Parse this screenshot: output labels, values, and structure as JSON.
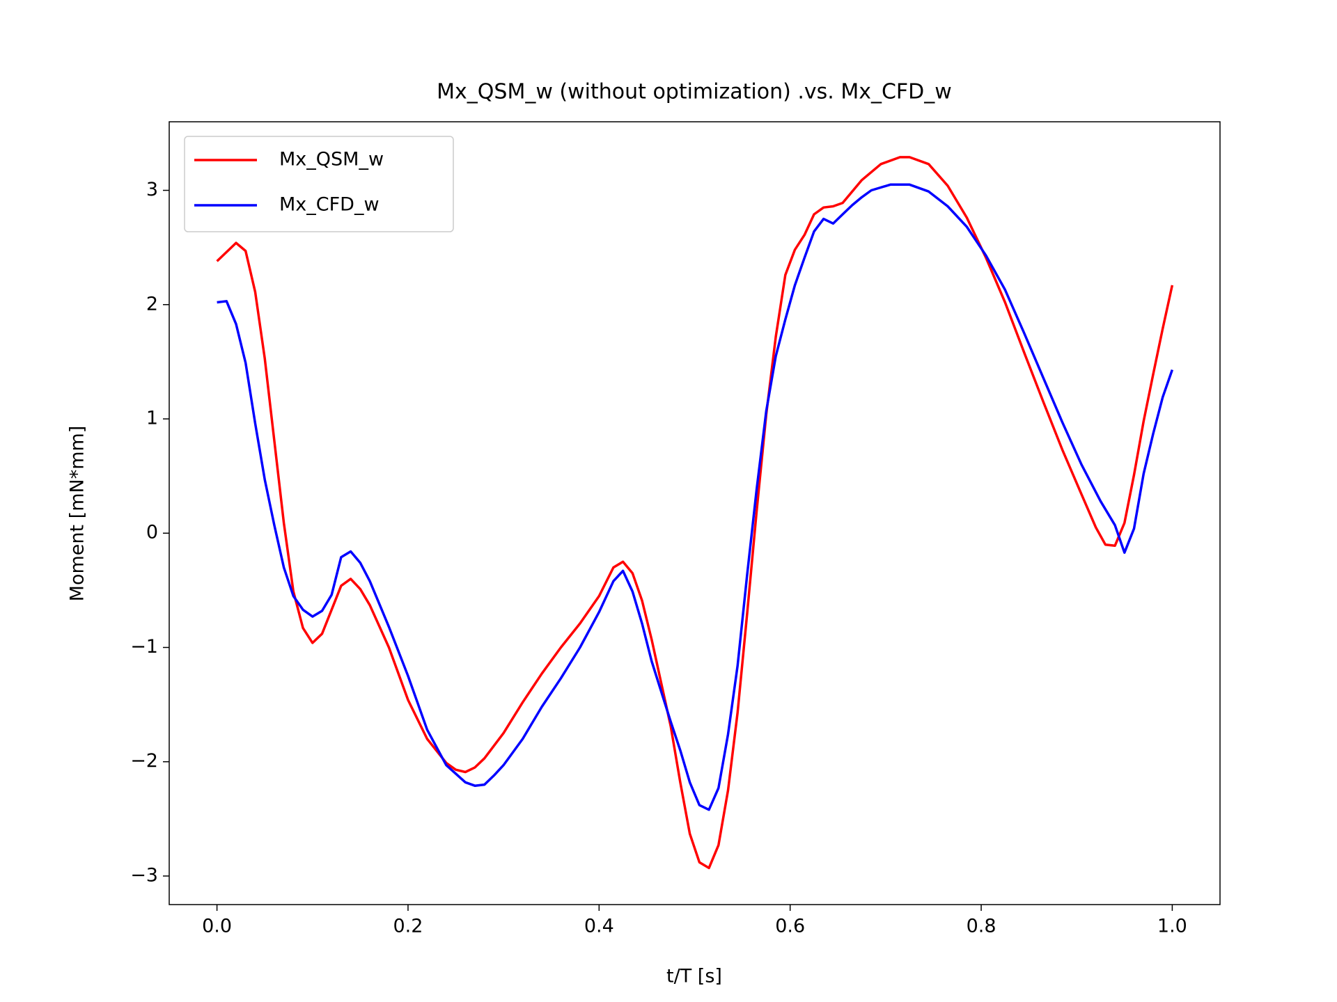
{
  "chart_data": {
    "type": "line",
    "title": "Mx_QSM_w (without optimization) .vs. Mx_CFD_w",
    "x_label": "t/T [s]",
    "y_label": "Moment [mN*mm]",
    "xlim": [
      -0.05,
      1.05
    ],
    "ylim": [
      -3.25,
      3.6
    ],
    "xticks": [
      {
        "value": 0,
        "label": "0.0"
      },
      {
        "value": 0.2,
        "label": "0.2"
      },
      {
        "value": 0.4,
        "label": "0.4"
      },
      {
        "value": 0.6,
        "label": "0.6"
      },
      {
        "value": 0.8,
        "label": "0.8"
      },
      {
        "value": 1,
        "label": "1.0"
      }
    ],
    "yticks": [
      {
        "value": -3,
        "label": "−3"
      },
      {
        "value": -2,
        "label": "−2"
      },
      {
        "value": -1,
        "label": "−1"
      },
      0,
      1,
      2,
      3
    ],
    "legend": "upper left",
    "series": [
      {
        "name": "Mx_QSM_w",
        "color": "#ff0000",
        "x": [
          0,
          0.01,
          0.02,
          0.03,
          0.04,
          0.05,
          0.06,
          0.07,
          0.08,
          0.09,
          0.1,
          0.11,
          0.12,
          0.13,
          0.14,
          0.15,
          0.16,
          0.18,
          0.2,
          0.22,
          0.24,
          0.25,
          0.26,
          0.27,
          0.28,
          0.3,
          0.32,
          0.34,
          0.36,
          0.38,
          0.4,
          0.415,
          0.425,
          0.435,
          0.445,
          0.455,
          0.475,
          0.485,
          0.495,
          0.505,
          0.515,
          0.525,
          0.535,
          0.545,
          0.555,
          0.565,
          0.575,
          0.585,
          0.595,
          0.605,
          0.615,
          0.625,
          0.635,
          0.645,
          0.655,
          0.665,
          0.675,
          0.695,
          0.715,
          0.725,
          0.745,
          0.765,
          0.785,
          0.805,
          0.825,
          0.845,
          0.865,
          0.885,
          0.905,
          0.92,
          0.93,
          0.94,
          0.95,
          0.96,
          0.97,
          0.98,
          0.99,
          1.0
        ],
        "values": [
          2.38,
          2.46,
          2.54,
          2.47,
          2.11,
          1.53,
          0.81,
          0.09,
          -0.51,
          -0.83,
          -0.96,
          -0.88,
          -0.67,
          -0.46,
          -0.4,
          -0.49,
          -0.63,
          -1.0,
          -1.46,
          -1.8,
          -2.01,
          -2.07,
          -2.09,
          -2.05,
          -1.97,
          -1.75,
          -1.48,
          -1.23,
          -1.0,
          -0.79,
          -0.55,
          -0.3,
          -0.25,
          -0.35,
          -0.59,
          -0.93,
          -1.69,
          -2.18,
          -2.63,
          -2.88,
          -2.93,
          -2.73,
          -2.25,
          -1.57,
          -0.7,
          0.2,
          1.04,
          1.72,
          2.26,
          2.48,
          2.61,
          2.79,
          2.85,
          2.86,
          2.89,
          2.99,
          3.09,
          3.23,
          3.29,
          3.29,
          3.23,
          3.04,
          2.76,
          2.41,
          2.02,
          1.58,
          1.15,
          0.73,
          0.34,
          0.05,
          -0.1,
          -0.11,
          0.09,
          0.51,
          0.98,
          1.39,
          1.79,
          2.17
        ]
      },
      {
        "name": "Mx_CFD_w",
        "color": "#0000ff",
        "x": [
          0,
          0.01,
          0.02,
          0.03,
          0.04,
          0.05,
          0.06,
          0.07,
          0.08,
          0.09,
          0.1,
          0.11,
          0.12,
          0.13,
          0.14,
          0.15,
          0.16,
          0.18,
          0.2,
          0.22,
          0.24,
          0.26,
          0.27,
          0.28,
          0.29,
          0.3,
          0.32,
          0.34,
          0.36,
          0.38,
          0.4,
          0.415,
          0.425,
          0.435,
          0.445,
          0.455,
          0.475,
          0.485,
          0.495,
          0.505,
          0.515,
          0.525,
          0.535,
          0.545,
          0.555,
          0.565,
          0.575,
          0.585,
          0.595,
          0.605,
          0.615,
          0.625,
          0.635,
          0.645,
          0.655,
          0.665,
          0.675,
          0.685,
          0.705,
          0.725,
          0.745,
          0.765,
          0.785,
          0.805,
          0.825,
          0.845,
          0.865,
          0.885,
          0.905,
          0.925,
          0.94,
          0.95,
          0.96,
          0.97,
          0.98,
          0.99,
          1.0
        ],
        "values": [
          2.02,
          2.03,
          1.83,
          1.49,
          0.96,
          0.47,
          0.07,
          -0.3,
          -0.55,
          -0.67,
          -0.73,
          -0.68,
          -0.54,
          -0.21,
          -0.16,
          -0.26,
          -0.42,
          -0.82,
          -1.25,
          -1.72,
          -2.03,
          -2.18,
          -2.21,
          -2.2,
          -2.12,
          -2.03,
          -1.8,
          -1.52,
          -1.27,
          -1.0,
          -0.69,
          -0.42,
          -0.33,
          -0.51,
          -0.79,
          -1.12,
          -1.65,
          -1.9,
          -2.18,
          -2.38,
          -2.42,
          -2.23,
          -1.76,
          -1.16,
          -0.36,
          0.39,
          1.07,
          1.55,
          1.87,
          2.17,
          2.41,
          2.64,
          2.75,
          2.71,
          2.79,
          2.87,
          2.94,
          3.0,
          3.05,
          3.05,
          2.99,
          2.86,
          2.68,
          2.43,
          2.13,
          1.75,
          1.36,
          0.97,
          0.6,
          0.28,
          0.07,
          -0.17,
          0.04,
          0.52,
          0.87,
          1.19,
          1.43
        ]
      }
    ]
  }
}
